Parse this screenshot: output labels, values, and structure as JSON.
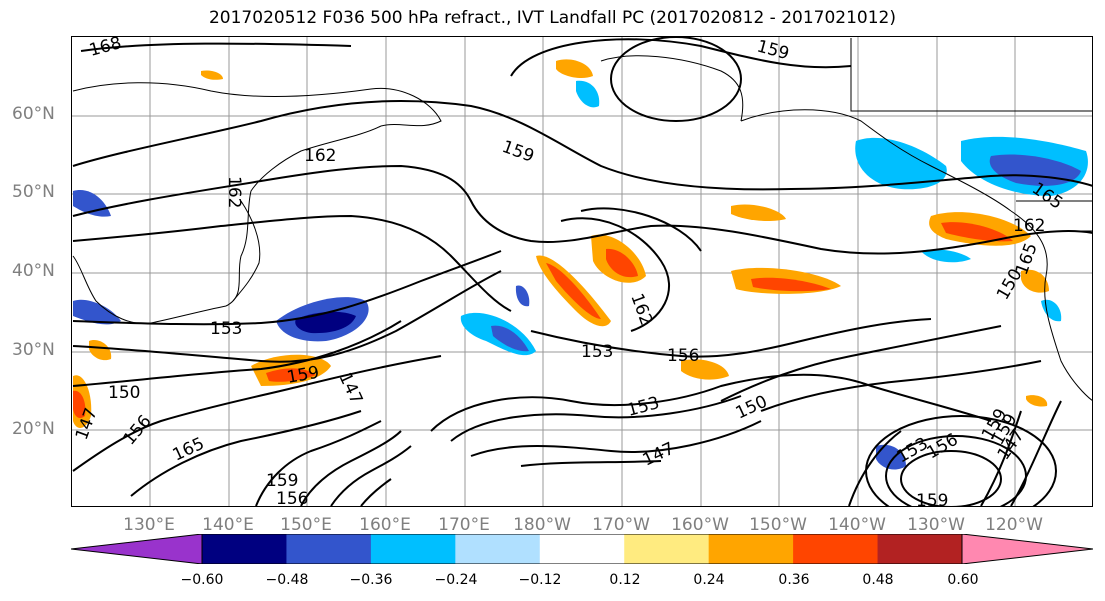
{
  "title": "2017020512 F036 500 hPa refract., IVT Landfall PC (2017020812 - 2017021012)",
  "lat_labels": [
    "60°N",
    "50°N",
    "40°N",
    "30°N",
    "20°N"
  ],
  "lon_labels": [
    "130°E",
    "140°E",
    "150°E",
    "160°E",
    "170°E",
    "180°W",
    "170°W",
    "160°W",
    "150°W",
    "140°W",
    "130°W",
    "120°W"
  ],
  "colorbar": {
    "colors": [
      "#9933cc",
      "#000080",
      "#3355cc",
      "#00bfff",
      "#b0e0ff",
      "#ffffff",
      "#ffeb80",
      "#ffa500",
      "#ff4500",
      "#b22222",
      "#ff88b0"
    ],
    "tick_labels": [
      "−0.60",
      "−0.48",
      "−0.36",
      "−0.24",
      "−0.12",
      "0.12",
      "0.24",
      "0.36",
      "0.48",
      "0.60"
    ]
  },
  "contour_labels": [
    "168",
    "159",
    "159",
    "162",
    "165",
    "162",
    "150",
    "153",
    "156",
    "162",
    "153",
    "153",
    "150",
    "147",
    "150",
    "147",
    "156",
    "165",
    "159",
    "162",
    "147",
    "159",
    "156",
    "156",
    "153",
    "147",
    "159",
    "159",
    "165",
    "159"
  ]
}
